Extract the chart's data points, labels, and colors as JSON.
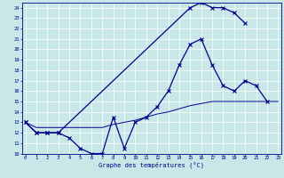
{
  "xlabel": "Graphe des températures (°C)",
  "bg_color": "#c8e8e8",
  "line_color": "#00008b",
  "grid_color": "#ffffff",
  "curve1_x": [
    0,
    1,
    2,
    3,
    4,
    5,
    6,
    7,
    8,
    9,
    10,
    11,
    12,
    13,
    14,
    15,
    16,
    17,
    18,
    19,
    20,
    21,
    22
  ],
  "curve1_y": [
    13,
    12,
    12,
    12,
    11.5,
    10.5,
    10,
    10,
    13.5,
    10.5,
    13,
    13.5,
    14.5,
    16,
    18.5,
    20.5,
    21,
    18.5,
    16.5,
    16,
    17,
    16.5,
    15
  ],
  "curve2_x": [
    0,
    1,
    2,
    3,
    15,
    16,
    17,
    18,
    19,
    20
  ],
  "curve2_y": [
    13,
    12,
    12,
    12,
    24,
    24.5,
    24,
    24,
    23.5,
    22.5
  ],
  "curve3_x": [
    0,
    1,
    2,
    3,
    4,
    5,
    6,
    7,
    8,
    9,
    10,
    11,
    12,
    13,
    14,
    15,
    16,
    17,
    18,
    19,
    20,
    21,
    22,
    23
  ],
  "curve3_y": [
    13,
    12.5,
    12.5,
    12.5,
    12.5,
    12.5,
    12.5,
    12.5,
    12.8,
    13,
    13.2,
    13.5,
    13.8,
    14,
    14.3,
    14.6,
    14.8,
    15,
    15,
    15,
    15,
    15,
    15,
    15
  ],
  "xlim": [
    0,
    23
  ],
  "ylim": [
    10,
    24.5
  ],
  "xticks": [
    0,
    1,
    2,
    3,
    4,
    5,
    6,
    7,
    8,
    9,
    10,
    11,
    12,
    13,
    14,
    15,
    16,
    17,
    18,
    19,
    20,
    21,
    22,
    23
  ],
  "yticks": [
    10,
    11,
    12,
    13,
    14,
    15,
    16,
    17,
    18,
    19,
    20,
    21,
    22,
    23,
    24
  ]
}
